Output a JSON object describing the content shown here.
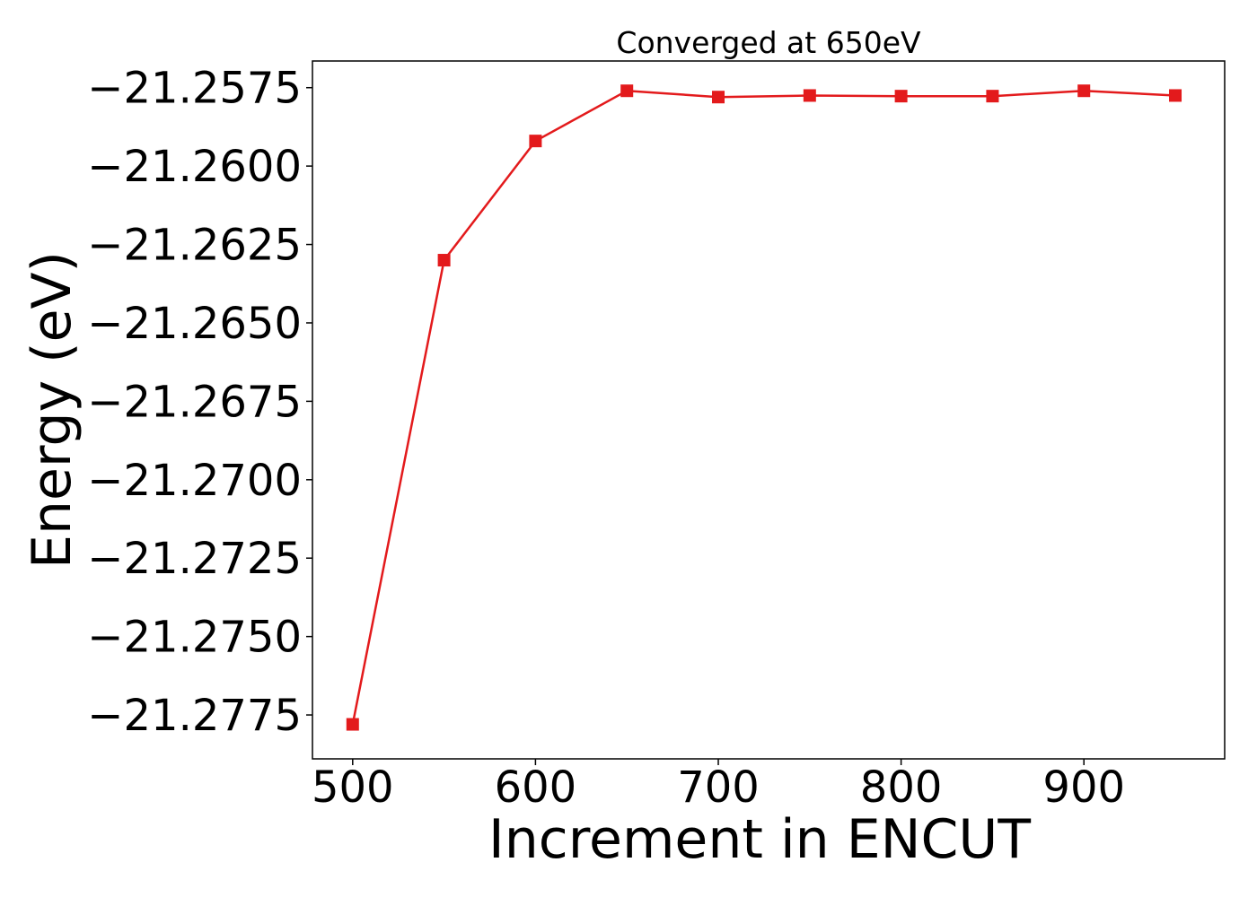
{
  "chart_data": {
    "type": "line",
    "title": "Converged at 650eV",
    "xlabel": "Increment in ENCUT",
    "ylabel": "Energy (eV)",
    "x": [
      500,
      550,
      600,
      650,
      700,
      750,
      800,
      850,
      900,
      950
    ],
    "series": [
      {
        "values": [
          -21.2778,
          -21.263,
          -21.2592,
          -21.2576,
          -21.2578,
          -21.25775,
          -21.25777,
          -21.25777,
          -21.2576,
          -21.25775
        ],
        "color": "#e31a1c",
        "marker": "square"
      }
    ],
    "xlim": [
      478,
      977
    ],
    "ylim": [
      -21.2789,
      -21.25665
    ],
    "xticks": [
      500,
      600,
      700,
      800,
      900
    ],
    "xtick_labels": [
      "500",
      "600",
      "700",
      "800",
      "900"
    ],
    "yticks": [
      -21.2775,
      -21.275,
      -21.2725,
      -21.27,
      -21.2675,
      -21.265,
      -21.2625,
      -21.26,
      -21.2575
    ],
    "ytick_labels": [
      "−21.2775",
      "−21.2750",
      "−21.2725",
      "−21.2700",
      "−21.2675",
      "−21.2650",
      "−21.2625",
      "−21.2600",
      "−21.2575"
    ],
    "grid": false,
    "legend": "none"
  }
}
